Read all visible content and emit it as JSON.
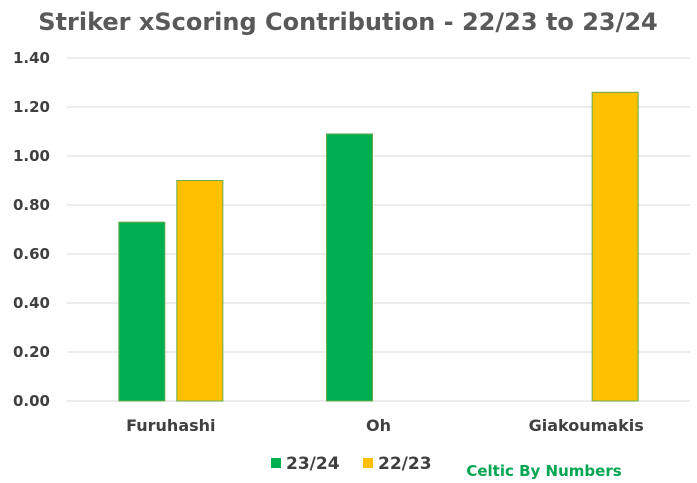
{
  "chart_data": {
    "type": "bar",
    "title": "Striker xScoring Contribution - 22/23 to 23/24",
    "categories": [
      "Furuhashi",
      "Oh",
      "Giakoumakis"
    ],
    "series": [
      {
        "name": "23/24",
        "color": "#00b050",
        "values": [
          0.73,
          1.09,
          null
        ]
      },
      {
        "name": "22/23",
        "color": "#ffc000",
        "values": [
          0.9,
          null,
          1.26
        ]
      }
    ],
    "ylim": [
      0,
      1.4
    ],
    "yticks": [
      "0.00",
      "0.20",
      "0.40",
      "0.60",
      "0.80",
      "1.00",
      "1.20",
      "1.40"
    ],
    "grid": true,
    "legend_position": "bottom",
    "xlabel": "",
    "ylabel": ""
  },
  "credit": "Celtic By Numbers"
}
